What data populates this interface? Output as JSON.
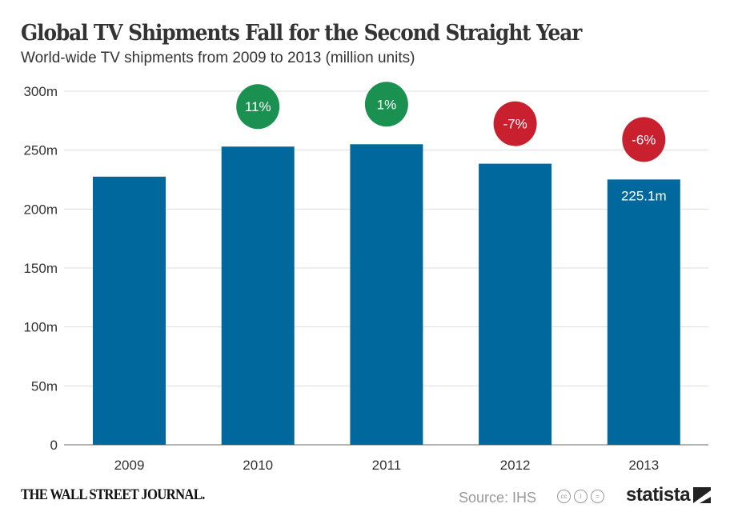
{
  "chart_data": {
    "type": "bar",
    "title": "Global TV Shipments Fall for the Second Straight Year",
    "subtitle": "World-wide TV shipments from 2009 to 2013 (million units)",
    "categories": [
      "2009",
      "2010",
      "2011",
      "2012",
      "2013"
    ],
    "values": [
      227.5,
      253,
      255,
      238.5,
      225.1
    ],
    "data_labels": {
      "2013": "225.1m"
    },
    "change_badges": [
      "",
      "11%",
      "1%",
      "-7%",
      "-6%"
    ],
    "ylim": [
      0,
      300
    ],
    "yticks": [
      0,
      50,
      100,
      150,
      200,
      250,
      300
    ],
    "ytick_labels": [
      "0",
      "50m",
      "100m",
      "150m",
      "200m",
      "250m",
      "300m"
    ],
    "grid": true,
    "colors": {
      "bar": "#00689c",
      "positive": "#1a9150",
      "negative": "#c8202f",
      "grid": "#dddddd"
    }
  },
  "footer": {
    "publisher": "THE WALL STREET JOURNAL.",
    "source": "Source: IHS",
    "license_icons": [
      "cc-icon",
      "by-icon",
      "nd-icon"
    ],
    "brand": "statista"
  }
}
